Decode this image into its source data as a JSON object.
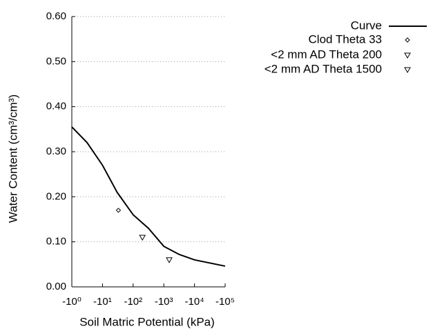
{
  "chart_data": {
    "type": "line",
    "x_label": "Soil Matric Potential (kPa)",
    "y_label": "Water Content (cm³/cm³)",
    "xscale": "log",
    "xlim": [
      1,
      100000
    ],
    "xticks": [
      {
        "value": 1,
        "label": "-10⁰"
      },
      {
        "value": 10,
        "label": "-10¹"
      },
      {
        "value": 100,
        "label": "-10²"
      },
      {
        "value": 1000,
        "label": "-10³"
      },
      {
        "value": 10000,
        "label": "-10⁴"
      },
      {
        "value": 100000,
        "label": "-10⁵"
      }
    ],
    "ylim": [
      0,
      0.6
    ],
    "yticks": [
      {
        "value": 0,
        "label": "0.00"
      },
      {
        "value": 0.1,
        "label": "0.10"
      },
      {
        "value": 0.2,
        "label": "0.20"
      },
      {
        "value": 0.3,
        "label": "0.30"
      },
      {
        "value": 0.4,
        "label": "0.40"
      },
      {
        "value": 0.5,
        "label": "0.50"
      },
      {
        "value": 0.6,
        "label": "0.60"
      }
    ],
    "grid": true,
    "legend": "upper right",
    "series": [
      {
        "name": "Curve",
        "color": "#000000",
        "marker": "none",
        "x": [
          1,
          3.16,
          10,
          30,
          100,
          316,
          1000,
          3162,
          10000,
          100000
        ],
        "values": [
          0.355,
          0.32,
          0.27,
          0.21,
          0.16,
          0.13,
          0.09,
          0.072,
          0.06,
          0.046
        ]
      },
      {
        "name": "Clod Theta 33",
        "color": "#000000",
        "marker": "diamond",
        "x": [
          33
        ],
        "values": [
          0.17
        ]
      },
      {
        "name": "<2 mm AD Theta 200",
        "color": "#000000",
        "marker": "triangle-down",
        "x": [
          200
        ],
        "values": [
          0.11
        ]
      },
      {
        "name": "<2 mm AD Theta 1500",
        "color": "#000000",
        "marker": "triangle-down",
        "x": [
          1500
        ],
        "values": [
          0.06
        ]
      }
    ]
  }
}
